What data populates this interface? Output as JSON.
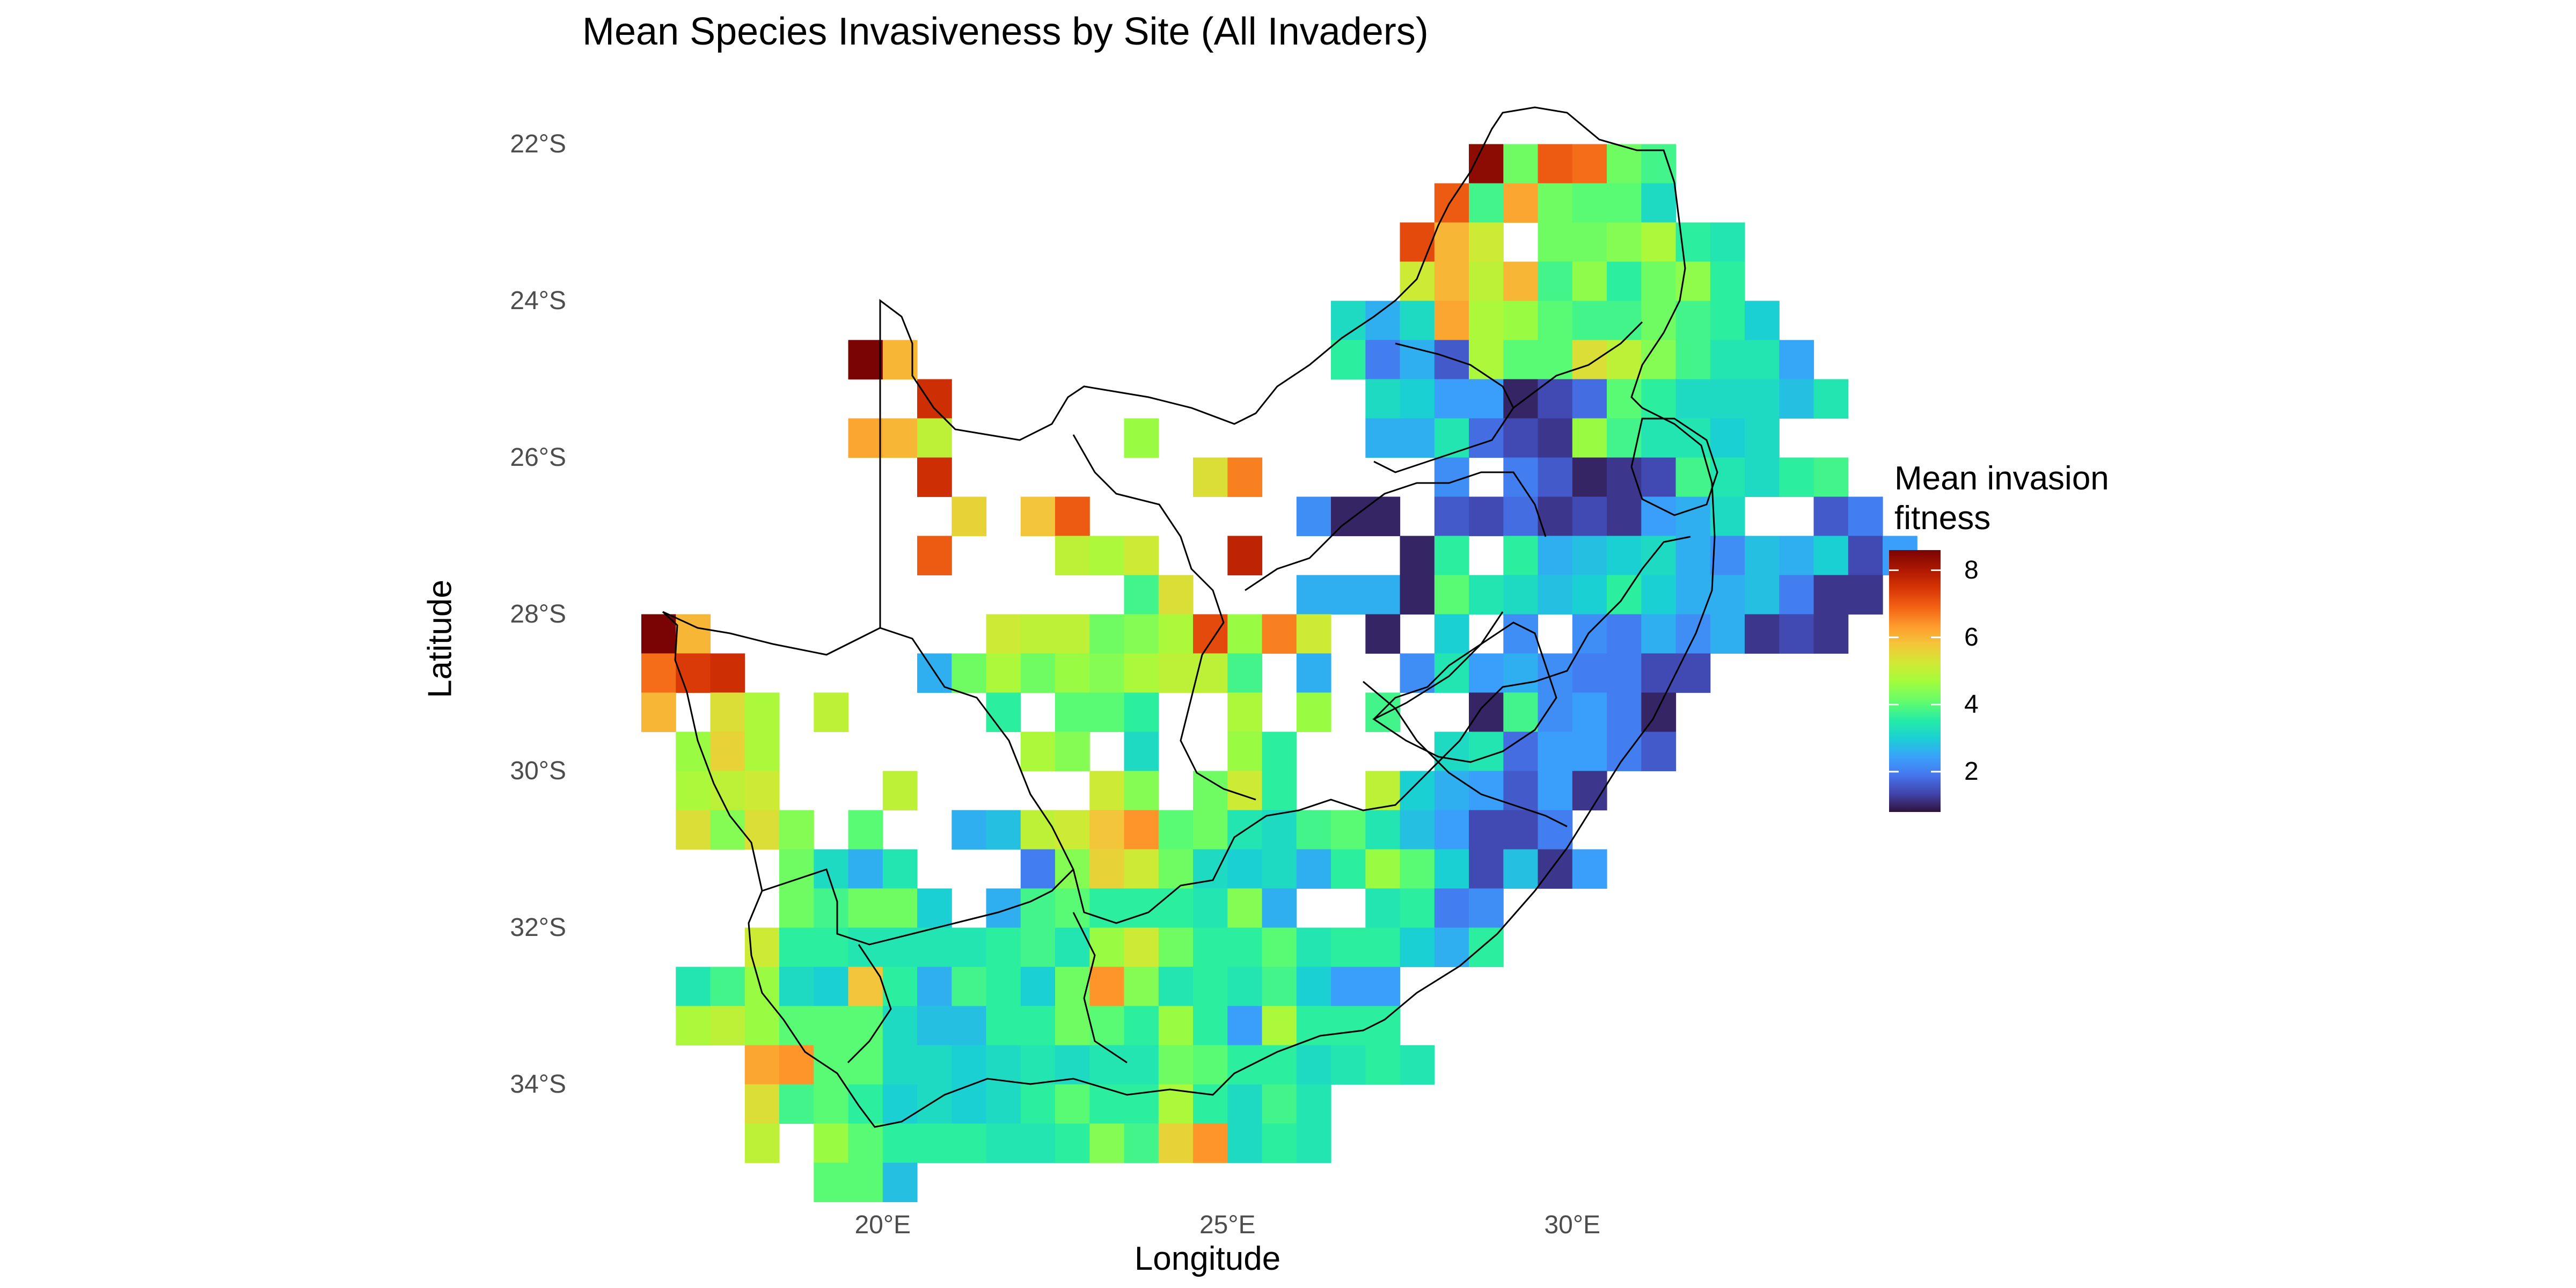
{
  "title": "Mean Species Invasiveness by Site (All Invaders)",
  "xlabel": "Longitude",
  "ylabel": "Latitude",
  "yticks": [
    "22°S",
    "24°S",
    "26°S",
    "28°S",
    "30°S",
    "32°S",
    "34°S"
  ],
  "xticks": [
    "20°E",
    "25°E",
    "30°E"
  ],
  "legend": {
    "title_line1": "Mean invasion",
    "title_line2": "fitness",
    "labels": [
      "8",
      "6",
      "4",
      "2"
    ],
    "scale": "turbo"
  },
  "chart_data": {
    "type": "heatmap",
    "cell_size_deg": 0.5,
    "x_range": [
      16.5,
      33.0
    ],
    "y_range": [
      -35.0,
      -22.0
    ],
    "value_range": [
      0.8,
      8.6
    ],
    "rows": [
      {
        "lat": -22.25,
        "lon_start": 28.5,
        "values": [
          8.4,
          4.2,
          7.0,
          6.8,
          4.2,
          3.8
        ]
      },
      {
        "lat": -22.75,
        "lon_start": 28.0,
        "values": [
          7.0,
          3.8,
          6.2,
          4.2,
          4.0,
          4.0,
          3.2
        ]
      },
      {
        "lat": -23.25,
        "lon_start": 27.5,
        "values": [
          7.2,
          6.0,
          5.2,
          null,
          4.2,
          4.2,
          4.4,
          4.8,
          3.6,
          3.4
        ]
      },
      {
        "lat": -23.75,
        "lon_start": 27.5,
        "values": [
          5.2,
          6.0,
          5.0,
          6.0,
          3.8,
          4.5,
          3.6,
          4.2,
          4.5,
          3.6
        ]
      },
      {
        "lat": -24.25,
        "lon_start": 26.5,
        "values": [
          3.2,
          2.6,
          3.2,
          6.2,
          4.8,
          4.6,
          4.0,
          3.8,
          3.8,
          4.2,
          3.8,
          3.6,
          3.0
        ]
      },
      {
        "lat": -24.75,
        "lon_start": 19.5,
        "values": [
          8.6,
          6.0,
          null,
          null,
          null,
          null,
          null,
          null,
          null,
          null,
          null,
          null,
          null,
          null,
          3.6,
          2.0,
          2.6,
          1.6,
          4.8,
          4.0,
          4.0,
          5.4,
          5.0,
          4.4,
          3.8,
          3.4,
          3.4,
          2.5
        ]
      },
      {
        "lat": -25.25,
        "lon_start": 20.5,
        "values": [
          7.6,
          null,
          null,
          null,
          null,
          null,
          null,
          null,
          null,
          null,
          null,
          null,
          null,
          3.2,
          3.0,
          2.4,
          2.4,
          1.0,
          1.4,
          1.8,
          4.0,
          3.6,
          3.2,
          3.2,
          3.2,
          2.8,
          3.4
        ]
      },
      {
        "lat": -25.75,
        "lon_start": 19.5,
        "values": [
          6.2,
          6.0,
          5.0,
          null,
          null,
          null,
          null,
          null,
          4.6,
          null,
          null,
          null,
          null,
          null,
          null,
          2.6,
          2.6,
          3.4,
          1.8,
          1.4,
          1.2,
          4.6,
          3.8,
          3.4,
          3.4,
          3.0,
          3.2
        ]
      },
      {
        "lat": -26.25,
        "lon_start": 20.5,
        "values": [
          7.6,
          null,
          null,
          null,
          null,
          null,
          null,
          null,
          5.4,
          6.6,
          null,
          null,
          null,
          null,
          null,
          2.2,
          null,
          2.0,
          1.6,
          1.0,
          1.2,
          1.4,
          3.8,
          3.4,
          3.2,
          3.6,
          3.8
        ]
      },
      {
        "lat": -26.75,
        "lon_start": 20.5,
        "values": [
          null,
          5.6,
          null,
          5.8,
          7.0,
          null,
          null,
          null,
          null,
          null,
          null,
          2.2,
          1.0,
          1.0,
          null,
          1.6,
          1.4,
          1.8,
          1.2,
          1.4,
          1.2,
          2.4,
          2.6,
          3.2,
          null,
          null,
          1.6,
          2.0
        ]
      },
      {
        "lat": -27.25,
        "lon_start": 20.5,
        "values": [
          7.0,
          null,
          null,
          null,
          5.0,
          4.8,
          5.2,
          null,
          null,
          7.8,
          null,
          null,
          null,
          null,
          1.0,
          3.6,
          null,
          3.6,
          2.6,
          2.8,
          3.0,
          3.2,
          2.6,
          2.2,
          2.8,
          2.6,
          3.0,
          1.4,
          2.4
        ]
      },
      {
        "lat": -27.75,
        "lon_start": 22.5,
        "values": [
          null,
          null,
          3.8,
          5.4,
          null,
          null,
          null,
          2.6,
          2.6,
          2.6,
          1.0,
          4.0,
          3.4,
          3.2,
          2.8,
          3.0,
          3.6,
          3.0,
          2.6,
          2.6,
          2.8,
          2.0,
          1.2,
          1.2
        ]
      },
      {
        "lat": -28.25,
        "lon_start": 16.5,
        "values": [
          8.6,
          6.0,
          null,
          null,
          null,
          null,
          null,
          null,
          null,
          null,
          5.2,
          5.0,
          5.0,
          4.2,
          4.4,
          4.8,
          7.2,
          4.6,
          6.6,
          5.2,
          null,
          1.0,
          null,
          3.0,
          null,
          2.2,
          null,
          2.2,
          2.0,
          2.6,
          2.2,
          2.6,
          1.2,
          1.4,
          1.2
        ]
      },
      {
        "lat": -28.75,
        "lon_start": 16.5,
        "values": [
          6.8,
          7.4,
          7.6,
          null,
          null,
          null,
          null,
          null,
          2.6,
          4.2,
          4.8,
          4.2,
          4.6,
          4.4,
          4.8,
          5.0,
          5.0,
          3.8,
          null,
          2.6,
          null,
          null,
          2.2,
          3.4,
          2.4,
          2.6,
          2.2,
          2.0,
          2.0,
          1.4,
          1.4
        ]
      },
      {
        "lat": -29.25,
        "lon_start": 16.5,
        "values": [
          6.0,
          null,
          5.4,
          4.8,
          null,
          5.0,
          null,
          null,
          null,
          null,
          3.6,
          null,
          4.0,
          4.0,
          3.6,
          null,
          null,
          4.8,
          null,
          4.6,
          null,
          3.8,
          null,
          null,
          1.0,
          3.8,
          2.2,
          2.4,
          2.0,
          1.0
        ]
      },
      {
        "lat": -29.75,
        "lon_start": 17.0,
        "values": [
          4.6,
          5.6,
          4.8,
          null,
          null,
          null,
          null,
          null,
          null,
          null,
          4.8,
          4.4,
          null,
          3.2,
          null,
          null,
          4.6,
          3.6,
          null,
          null,
          null,
          null,
          3.2,
          3.4,
          1.8,
          2.4,
          2.4,
          2.0,
          1.6
        ]
      },
      {
        "lat": -30.25,
        "lon_start": 17.0,
        "values": [
          4.8,
          5.0,
          5.2,
          null,
          null,
          null,
          5.0,
          null,
          null,
          null,
          null,
          null,
          5.2,
          4.4,
          null,
          4.2,
          5.2,
          3.6,
          null,
          null,
          5.0,
          3.0,
          2.6,
          2.4,
          1.6,
          2.4,
          1.2
        ]
      },
      {
        "lat": -30.75,
        "lon_start": 17.0,
        "values": [
          5.4,
          4.4,
          5.4,
          4.4,
          null,
          4.0,
          null,
          null,
          2.6,
          2.8,
          5.0,
          5.2,
          5.8,
          6.4,
          4.0,
          4.2,
          3.4,
          3.2,
          3.8,
          4.0,
          3.4,
          2.8,
          2.4,
          1.4,
          1.4,
          2.0
        ]
      },
      {
        "lat": -31.25,
        "lon_start": 18.5,
        "values": [
          4.2,
          3.2,
          2.6,
          3.4,
          null,
          null,
          null,
          2.0,
          4.4,
          5.6,
          5.2,
          4.2,
          3.2,
          3.0,
          3.2,
          2.6,
          3.6,
          4.6,
          4.0,
          3.0,
          1.4,
          2.8,
          1.2,
          2.4
        ]
      },
      {
        "lat": -31.75,
        "lon_start": 18.5,
        "values": [
          4.2,
          3.8,
          4.2,
          4.2,
          3.0,
          null,
          2.6,
          3.8,
          4.0,
          3.6,
          3.6,
          3.6,
          3.4,
          4.4,
          2.6,
          null,
          null,
          3.4,
          3.6,
          2.0,
          2.2
        ]
      },
      {
        "lat": -32.25,
        "lon_start": 18.0,
        "values": [
          5.2,
          3.6,
          3.6,
          3.4,
          3.4,
          3.4,
          3.4,
          3.6,
          3.8,
          3.4,
          4.6,
          5.2,
          4.2,
          3.6,
          3.6,
          4.0,
          3.4,
          3.6,
          3.6,
          3.0,
          2.6,
          3.6
        ]
      },
      {
        "lat": -32.75,
        "lon_start": 17.0,
        "values": [
          3.4,
          3.8,
          4.6,
          3.2,
          3.0,
          5.8,
          3.6,
          2.6,
          3.8,
          3.6,
          3.0,
          4.2,
          6.4,
          4.4,
          3.4,
          3.6,
          3.4,
          3.8,
          3.0,
          2.4,
          2.4
        ]
      },
      {
        "lat": -33.25,
        "lon_start": 17.0,
        "values": [
          4.8,
          5.0,
          4.6,
          4.0,
          4.0,
          4.0,
          3.2,
          2.8,
          2.8,
          3.6,
          3.6,
          4.2,
          4.0,
          3.6,
          4.6,
          3.6,
          2.4,
          4.8,
          3.6,
          3.6,
          3.6
        ]
      },
      {
        "lat": -33.75,
        "lon_start": 18.0,
        "values": [
          6.2,
          6.4,
          4.0,
          4.0,
          3.2,
          3.2,
          3.0,
          3.2,
          3.4,
          3.2,
          3.4,
          3.4,
          4.2,
          4.0,
          3.6,
          3.6,
          3.2,
          3.4,
          3.6,
          3.4
        ]
      },
      {
        "lat": -34.25,
        "lon_start": 18.0,
        "values": [
          5.4,
          3.8,
          4.0,
          3.6,
          3.0,
          3.2,
          3.0,
          3.2,
          3.6,
          4.0,
          3.6,
          3.6,
          4.8,
          3.6,
          3.2,
          3.8,
          3.4
        ]
      },
      {
        "lat": -34.75,
        "lon_start": 18.0,
        "values": [
          5.0,
          null,
          4.6,
          4.0,
          3.6,
          3.6,
          3.6,
          3.4,
          3.4,
          3.6,
          4.4,
          3.8,
          5.6,
          6.4,
          3.2,
          3.6,
          3.4
        ]
      },
      {
        "lat": -35.25,
        "lon_start": 19.0,
        "values": [
          4.0,
          4.0,
          2.8
        ]
      }
    ]
  }
}
